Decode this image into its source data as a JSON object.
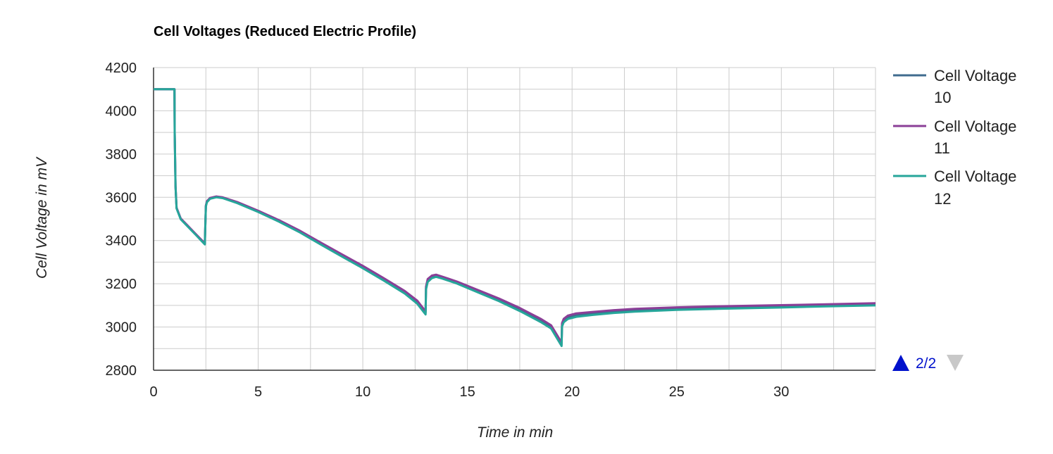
{
  "chart_data": {
    "type": "line",
    "title": "Cell Voltages (Reduced Electric Profile)",
    "xlabel": "Time in min",
    "ylabel": "Cell Voltage in mV",
    "xlim": [
      0,
      34.5
    ],
    "ylim": [
      2800,
      4200
    ],
    "x_ticks": [
      0,
      5,
      10,
      15,
      20,
      25,
      30
    ],
    "y_ticks": [
      2800,
      3000,
      3200,
      3400,
      3600,
      3800,
      4000,
      4200
    ],
    "grid": true,
    "legend_position": "right",
    "series": [
      {
        "name": "Cell Voltage 10",
        "color": "#3f6b8e",
        "x": [
          0,
          1.0,
          1.01,
          1.05,
          1.1,
          1.3,
          1.6,
          2.0,
          2.45,
          2.5,
          2.55,
          2.7,
          3.0,
          3.3,
          4.0,
          5.0,
          6.0,
          7.0,
          8.0,
          9.0,
          10.0,
          11.0,
          12.0,
          12.6,
          13.0,
          13.02,
          13.1,
          13.3,
          13.5,
          13.8,
          14.5,
          15.5,
          16.5,
          17.5,
          18.5,
          19.0,
          19.5,
          19.52,
          19.6,
          19.8,
          20.2,
          21.0,
          22.0,
          23.0,
          25.0,
          27.0,
          30.0,
          32.0,
          34.5
        ],
        "values": [
          4100,
          4100,
          3900,
          3650,
          3550,
          3500,
          3470,
          3430,
          3385,
          3560,
          3580,
          3595,
          3602,
          3598,
          3575,
          3535,
          3490,
          3440,
          3385,
          3330,
          3277,
          3220,
          3160,
          3115,
          3065,
          3180,
          3215,
          3232,
          3237,
          3228,
          3205,
          3165,
          3125,
          3080,
          3030,
          3000,
          2920,
          3010,
          3030,
          3045,
          3055,
          3063,
          3072,
          3078,
          3085,
          3090,
          3095,
          3100,
          3105
        ]
      },
      {
        "name": "Cell Voltage 11",
        "color": "#8b3f97",
        "x": [
          0,
          1.0,
          1.01,
          1.05,
          1.1,
          1.3,
          1.6,
          2.0,
          2.45,
          2.5,
          2.55,
          2.7,
          3.0,
          3.3,
          4.0,
          5.0,
          6.0,
          7.0,
          8.0,
          9.0,
          10.0,
          11.0,
          12.0,
          12.6,
          13.0,
          13.02,
          13.1,
          13.3,
          13.5,
          13.8,
          14.5,
          15.5,
          16.5,
          17.5,
          18.5,
          19.0,
          19.5,
          19.52,
          19.6,
          19.8,
          20.2,
          21.0,
          22.0,
          23.0,
          25.0,
          27.0,
          30.0,
          32.0,
          34.5
        ],
        "values": [
          4100,
          4100,
          3900,
          3652,
          3552,
          3502,
          3472,
          3432,
          3387,
          3562,
          3582,
          3597,
          3604,
          3600,
          3578,
          3538,
          3494,
          3445,
          3390,
          3336,
          3283,
          3226,
          3167,
          3122,
          3072,
          3187,
          3222,
          3238,
          3242,
          3233,
          3210,
          3171,
          3132,
          3088,
          3038,
          3008,
          2928,
          3018,
          3038,
          3053,
          3063,
          3070,
          3078,
          3084,
          3091,
          3096,
          3101,
          3105,
          3110
        ]
      },
      {
        "name": "Cell Voltage 12",
        "color": "#26a69a",
        "x": [
          0,
          1.0,
          1.01,
          1.05,
          1.1,
          1.3,
          1.6,
          2.0,
          2.45,
          2.5,
          2.55,
          2.7,
          3.0,
          3.3,
          4.0,
          5.0,
          6.0,
          7.0,
          8.0,
          9.0,
          10.0,
          11.0,
          12.0,
          12.6,
          13.0,
          13.02,
          13.1,
          13.3,
          13.5,
          13.8,
          14.5,
          15.5,
          16.5,
          17.5,
          18.5,
          19.0,
          19.5,
          19.52,
          19.6,
          19.8,
          20.2,
          21.0,
          22.0,
          23.0,
          25.0,
          27.0,
          30.0,
          32.0,
          34.5
        ],
        "values": [
          4100,
          4100,
          3900,
          3648,
          3548,
          3498,
          3468,
          3428,
          3382,
          3557,
          3577,
          3593,
          3600,
          3596,
          3573,
          3532,
          3487,
          3437,
          3381,
          3326,
          3272,
          3215,
          3155,
          3108,
          3058,
          3173,
          3208,
          3226,
          3232,
          3224,
          3201,
          3160,
          3120,
          3074,
          3023,
          2993,
          2912,
          3002,
          3022,
          3037,
          3047,
          3056,
          3065,
          3071,
          3079,
          3084,
          3090,
          3095,
          3100
        ]
      }
    ]
  },
  "legend": {
    "items": [
      {
        "line1": "Cell Voltage",
        "line2": "10",
        "color": "#3f6b8e"
      },
      {
        "line1": "Cell Voltage",
        "line2": "11",
        "color": "#8b3f97"
      },
      {
        "line1": "Cell Voltage",
        "line2": "12",
        "color": "#26a69a"
      }
    ]
  },
  "pager": {
    "text": "2/2",
    "up_color": "#0011cc",
    "down_color": "#c8c8c8"
  }
}
